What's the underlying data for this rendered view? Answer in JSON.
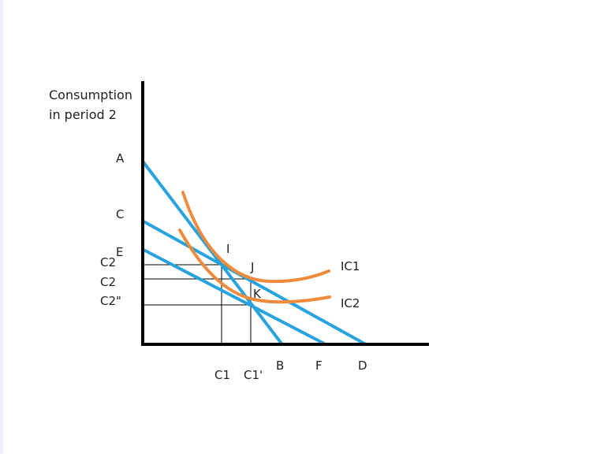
{
  "diagram": {
    "y_axis_label_line1": "Consumption",
    "y_axis_label_line2": "in period 2",
    "labels": {
      "A": "A",
      "C": "C",
      "E": "E",
      "B": "B",
      "F": "F",
      "D": "D",
      "I": "I",
      "J": "J",
      "K": "K",
      "C2_upper": "C2",
      "C2_middle": "C2",
      "C2_double_prime": "C2\"",
      "C1": "C1",
      "C1_prime": "C1'",
      "IC1": "IC1",
      "IC2": "IC2"
    },
    "colors": {
      "axis": "#000000",
      "budget_line": "#29a3dd",
      "indifference_curve": "#f08a3c",
      "guide_line": "#000000"
    }
  }
}
